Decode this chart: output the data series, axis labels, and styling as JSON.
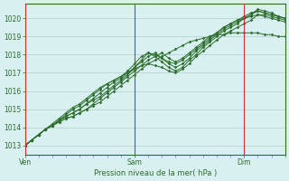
{
  "bg_color": "#d8f0f0",
  "plot_bg_color": "#d8f0f0",
  "grid_color": "#b0d0d0",
  "line_color": "#2d6e2d",
  "vline_color": "#cc3333",
  "axis_label_color": "#2d6e2d",
  "ylabel_ticks": [
    1013,
    1014,
    1015,
    1016,
    1017,
    1018,
    1019,
    1020
  ],
  "ylim": [
    1012.5,
    1020.8
  ],
  "xlabel": "Pression niveau de la mer( hPa )",
  "day_labels": [
    "Ven",
    "Sam",
    "Dim"
  ],
  "day_positions": [
    0,
    48,
    96
  ],
  "total_hours": 114,
  "series": [
    {
      "x": [
        0,
        3,
        6,
        9,
        12,
        15,
        18,
        21,
        24,
        27,
        30,
        33,
        36,
        39,
        42,
        45,
        48,
        51,
        54,
        57,
        60,
        63,
        66,
        69,
        72,
        75,
        78,
        81,
        84,
        87,
        90,
        93,
        96,
        99,
        102,
        105,
        108,
        111,
        114
      ],
      "y": [
        1013.0,
        1013.3,
        1013.6,
        1013.9,
        1014.1,
        1014.3,
        1014.5,
        1014.6,
        1014.8,
        1015.0,
        1015.2,
        1015.4,
        1015.7,
        1016.0,
        1016.3,
        1016.6,
        1016.9,
        1017.2,
        1017.5,
        1017.7,
        1017.9,
        1018.1,
        1018.3,
        1018.5,
        1018.7,
        1018.8,
        1018.9,
        1019.0,
        1019.1,
        1019.1,
        1019.2,
        1019.2,
        1019.2,
        1019.2,
        1019.2,
        1019.1,
        1019.1,
        1019.0,
        1019.0
      ]
    },
    {
      "x": [
        0,
        3,
        6,
        9,
        12,
        15,
        18,
        21,
        24,
        27,
        30,
        33,
        36,
        39,
        42,
        45,
        48,
        51,
        54,
        57,
        60,
        63,
        66,
        69,
        72,
        75,
        78,
        81,
        84,
        87,
        90,
        93,
        96,
        99,
        102,
        105,
        108,
        111,
        114
      ],
      "y": [
        1013.0,
        1013.3,
        1013.6,
        1013.9,
        1014.1,
        1014.3,
        1014.5,
        1014.6,
        1014.8,
        1015.0,
        1015.3,
        1015.6,
        1015.9,
        1016.2,
        1016.5,
        1016.8,
        1017.1,
        1017.4,
        1017.7,
        1017.9,
        1018.1,
        1017.8,
        1017.6,
        1017.8,
        1018.1,
        1018.4,
        1018.7,
        1019.0,
        1019.2,
        1019.5,
        1019.7,
        1019.9,
        1020.0,
        1020.1,
        1020.2,
        1020.1,
        1020.0,
        1019.9,
        1019.8
      ]
    },
    {
      "x": [
        0,
        3,
        6,
        9,
        12,
        15,
        18,
        21,
        24,
        27,
        30,
        33,
        36,
        39,
        42,
        45,
        48,
        51,
        54,
        57,
        60,
        63,
        66,
        69,
        72,
        75,
        78,
        81,
        84,
        87,
        90,
        93,
        96,
        99,
        102,
        105,
        108,
        111,
        114
      ],
      "y": [
        1013.0,
        1013.3,
        1013.6,
        1013.9,
        1014.1,
        1014.4,
        1014.6,
        1014.8,
        1015.0,
        1015.3,
        1015.5,
        1015.7,
        1016.0,
        1016.3,
        1016.6,
        1016.9,
        1017.3,
        1017.7,
        1018.1,
        1018.0,
        1017.8,
        1017.6,
        1017.5,
        1017.7,
        1018.0,
        1018.3,
        1018.6,
        1018.9,
        1019.2,
        1019.5,
        1019.7,
        1019.9,
        1020.1,
        1020.3,
        1020.4,
        1020.3,
        1020.2,
        1020.1,
        1020.0
      ]
    },
    {
      "x": [
        0,
        3,
        6,
        9,
        12,
        15,
        18,
        21,
        24,
        27,
        30,
        33,
        36,
        39,
        42,
        45,
        48,
        51,
        54,
        57,
        60,
        63,
        66,
        69,
        72,
        75,
        78,
        81,
        84,
        87,
        90,
        93,
        96,
        99,
        102,
        105,
        108,
        111,
        114
      ],
      "y": [
        1013.0,
        1013.3,
        1013.6,
        1013.9,
        1014.1,
        1014.4,
        1014.6,
        1014.8,
        1015.0,
        1015.3,
        1015.6,
        1015.9,
        1016.2,
        1016.5,
        1016.7,
        1017.0,
        1017.3,
        1017.6,
        1017.9,
        1018.1,
        1017.8,
        1017.5,
        1017.3,
        1017.5,
        1017.8,
        1018.2,
        1018.5,
        1018.8,
        1019.1,
        1019.4,
        1019.6,
        1019.8,
        1020.0,
        1020.2,
        1020.4,
        1020.3,
        1020.2,
        1020.1,
        1020.0
      ]
    },
    {
      "x": [
        0,
        3,
        6,
        9,
        12,
        15,
        18,
        21,
        24,
        27,
        30,
        33,
        36,
        39,
        42,
        45,
        48,
        51,
        54,
        57,
        60,
        63,
        66,
        69,
        72,
        75,
        78,
        81,
        84,
        87,
        90,
        93,
        96,
        99,
        102,
        105,
        108,
        111,
        114
      ],
      "y": [
        1013.0,
        1013.3,
        1013.6,
        1013.9,
        1014.1,
        1014.4,
        1014.7,
        1015.0,
        1015.2,
        1015.5,
        1015.8,
        1016.1,
        1016.4,
        1016.6,
        1016.8,
        1017.1,
        1017.5,
        1017.9,
        1018.1,
        1017.9,
        1017.6,
        1017.3,
        1017.1,
        1017.3,
        1017.7,
        1018.0,
        1018.4,
        1018.7,
        1019.0,
        1019.3,
        1019.5,
        1019.7,
        1020.0,
        1020.2,
        1020.5,
        1020.4,
        1020.3,
        1020.1,
        1020.0
      ]
    },
    {
      "x": [
        0,
        3,
        6,
        9,
        12,
        15,
        18,
        21,
        24,
        27,
        30,
        33,
        36,
        39,
        42,
        45,
        48,
        51,
        54,
        57,
        60,
        63,
        66,
        69,
        72,
        75,
        78,
        81,
        84,
        87,
        90,
        93,
        96,
        99,
        102,
        105,
        108,
        111,
        114
      ],
      "y": [
        1013.0,
        1013.3,
        1013.6,
        1013.9,
        1014.2,
        1014.5,
        1014.8,
        1015.1,
        1015.3,
        1015.6,
        1015.9,
        1016.2,
        1016.4,
        1016.6,
        1016.8,
        1017.0,
        1017.2,
        1017.4,
        1017.5,
        1017.4,
        1017.3,
        1017.1,
        1017.0,
        1017.2,
        1017.5,
        1017.9,
        1018.2,
        1018.5,
        1018.8,
        1019.1,
        1019.3,
        1019.5,
        1019.7,
        1019.9,
        1020.2,
        1020.2,
        1020.1,
        1020.0,
        1019.9
      ]
    }
  ]
}
